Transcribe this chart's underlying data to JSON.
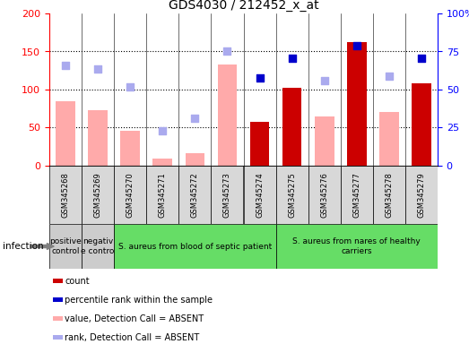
{
  "title": "GDS4030 / 212452_x_at",
  "samples": [
    "GSM345268",
    "GSM345269",
    "GSM345270",
    "GSM345271",
    "GSM345272",
    "GSM345273",
    "GSM345274",
    "GSM345275",
    "GSM345276",
    "GSM345277",
    "GSM345278",
    "GSM345279"
  ],
  "count_values": [
    null,
    null,
    null,
    null,
    null,
    null,
    58,
    102,
    null,
    162,
    null,
    108
  ],
  "count_color": "#cc0000",
  "value_absent": [
    85,
    73,
    46,
    9,
    16,
    133,
    null,
    null,
    65,
    null,
    70,
    null
  ],
  "value_absent_color": "#ffaaaa",
  "rank_absent": [
    132,
    127,
    103,
    46,
    62,
    150,
    null,
    null,
    112,
    null,
    118,
    null
  ],
  "rank_absent_color": "#aaaaee",
  "percentile_present": [
    null,
    null,
    null,
    null,
    null,
    null,
    115,
    141,
    null,
    158,
    null,
    141
  ],
  "percentile_color": "#0000cc",
  "ylim_left": [
    0,
    200
  ],
  "ylim_right": [
    0,
    100
  ],
  "yticks_left": [
    0,
    50,
    100,
    150,
    200
  ],
  "yticks_right": [
    0,
    25,
    50,
    75,
    100
  ],
  "ytick_labels_right": [
    "0",
    "25",
    "50",
    "75",
    "100%"
  ],
  "groups": [
    {
      "label": "positive\ncontrol",
      "start": 0,
      "end": 1,
      "color": "#cccccc"
    },
    {
      "label": "negativ\ne contro",
      "start": 1,
      "end": 2,
      "color": "#cccccc"
    },
    {
      "label": "S. aureus from blood of septic patient",
      "start": 2,
      "end": 7,
      "color": "#66dd66"
    },
    {
      "label": "S. aureus from nares of healthy\ncarriers",
      "start": 7,
      "end": 12,
      "color": "#66dd66"
    }
  ],
  "infection_label": "infection",
  "legend_items": [
    {
      "label": "count",
      "color": "#cc0000"
    },
    {
      "label": "percentile rank within the sample",
      "color": "#0000cc"
    },
    {
      "label": "value, Detection Call = ABSENT",
      "color": "#ffaaaa"
    },
    {
      "label": "rank, Detection Call = ABSENT",
      "color": "#aaaaee"
    }
  ]
}
